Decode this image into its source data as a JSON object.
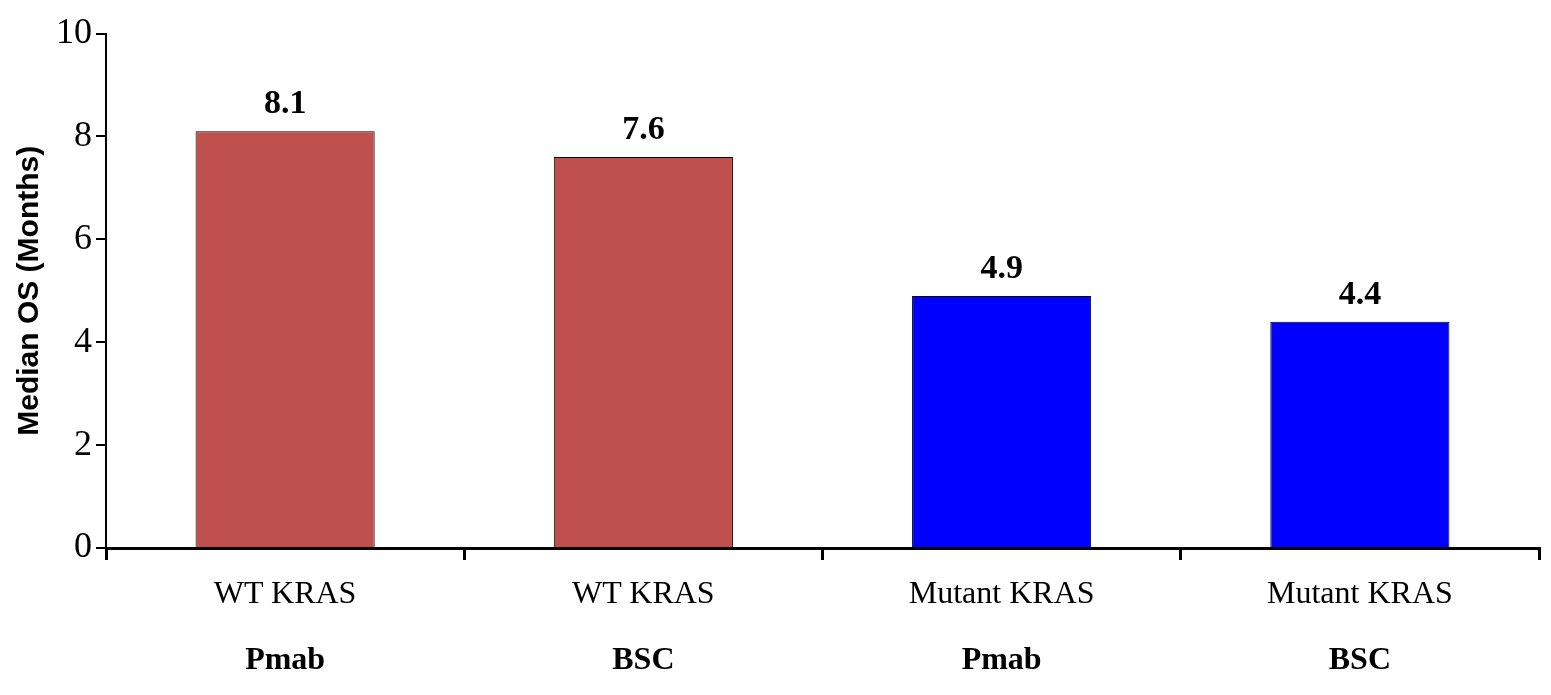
{
  "chart_data": {
    "type": "bar",
    "ylabel": "Median OS (Months)",
    "categories": [
      "WT KRAS\nPmab",
      "WT KRAS\nBSC",
      "Mutant KRAS\nPmab",
      "Mutant KRAS\nBSC"
    ],
    "values": [
      8.1,
      7.6,
      4.9,
      4.4
    ],
    "colors": [
      "#c0504d",
      "#c0504d",
      "#0000ff",
      "#0000ff"
    ],
    "ylim": [
      0,
      10
    ],
    "yticks": [
      0,
      2,
      4,
      6,
      8,
      10
    ],
    "grid": false,
    "legend": false,
    "data_labels": true
  }
}
